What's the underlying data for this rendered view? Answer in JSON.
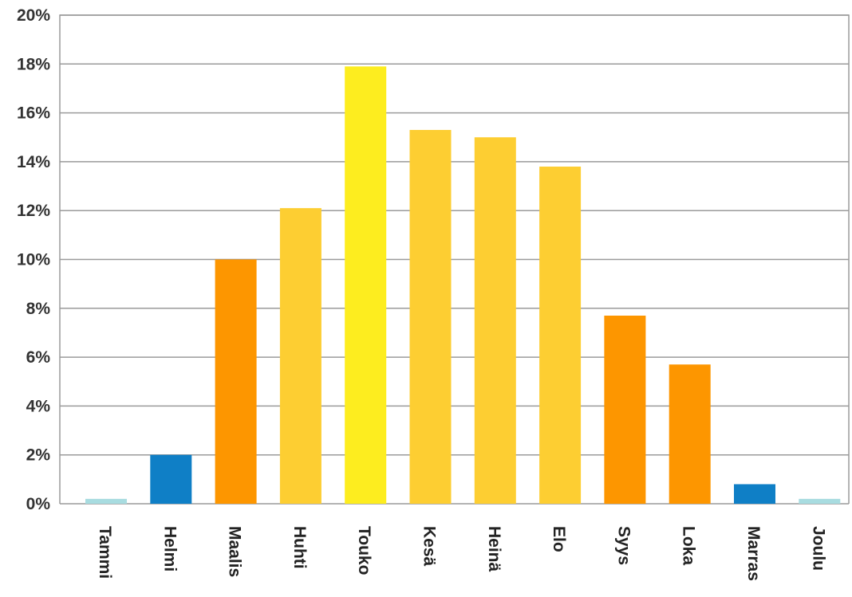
{
  "chart_data": {
    "type": "bar",
    "categories": [
      "Tammi",
      "Helmi",
      "Maalis",
      "Huhti",
      "Touko",
      "Kesä",
      "Heinä",
      "Elo",
      "Syys",
      "Loka",
      "Marras",
      "Joulu"
    ],
    "values": [
      0.2,
      2.0,
      10.0,
      12.1,
      17.9,
      15.3,
      15.0,
      13.8,
      7.7,
      5.7,
      0.8,
      0.2
    ],
    "bar_colors": [
      "#a8dce0",
      "#0f7fc6",
      "#fd9600",
      "#fdce32",
      "#fded1f",
      "#fdce32",
      "#fdce32",
      "#fdce32",
      "#fd9600",
      "#fd9600",
      "#0f7fc6",
      "#a8dce0"
    ],
    "y_ticks": [
      "0%",
      "2%",
      "4%",
      "6%",
      "8%",
      "10%",
      "12%",
      "14%",
      "16%",
      "18%",
      "20%"
    ],
    "y_tick_values": [
      0,
      2,
      4,
      6,
      8,
      10,
      12,
      14,
      16,
      18,
      20
    ],
    "ylim": [
      0,
      20
    ],
    "grid": true,
    "title": "",
    "xlabel": "",
    "ylabel": ""
  }
}
